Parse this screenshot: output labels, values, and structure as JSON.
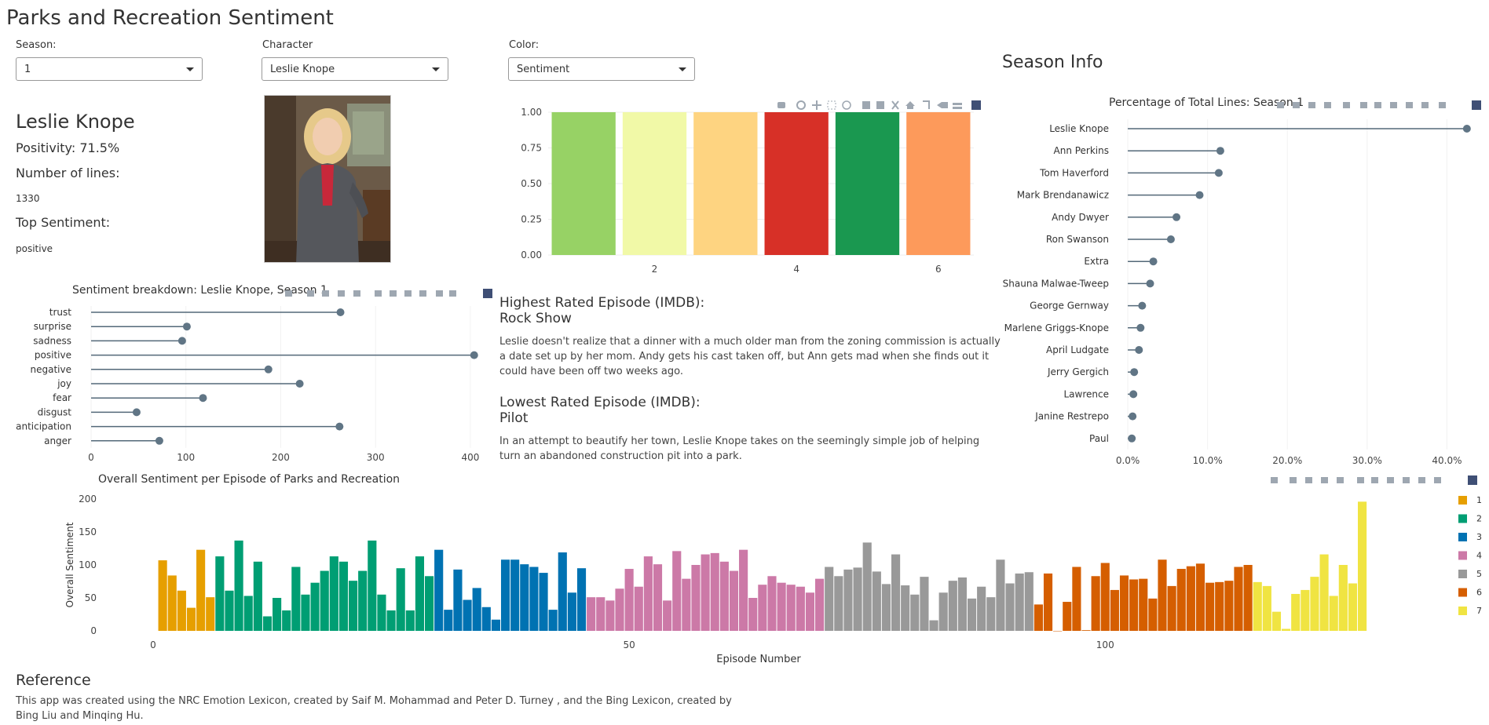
{
  "app": {
    "title": "Parks and Recreation Sentiment"
  },
  "controls": {
    "season": {
      "label": "Season:",
      "value": "1"
    },
    "character": {
      "label": "Character",
      "value": "Leslie Knope"
    },
    "color": {
      "label": "Color:",
      "value": "Sentiment"
    }
  },
  "profile": {
    "name": "Leslie Knope",
    "positivity": "Positivity: 71.5%",
    "lines_label": "Number of lines:",
    "lines_value": "1330",
    "top_label": "Top Sentiment:",
    "top_value": "positive"
  },
  "episodes": {
    "highest_label": "Highest Rated Episode (IMDB):",
    "highest_title": "Rock Show",
    "highest_desc": "Leslie doesn't realize that a dinner with a much older man from the zoning commission is actually a date set up by her mom. Andy gets his cast taken off, but Ann gets mad when she finds out it could have been off two weeks ago.",
    "lowest_label": "Lowest Rated Episode (IMDB):",
    "lowest_title": "Pilot",
    "lowest_desc": "In an attempt to beautify her town, Leslie Knope takes on the seemingly simple job of helping turn an abandoned construction pit into a park."
  },
  "season_info": {
    "title": "Season Info"
  },
  "reference": {
    "title": "Reference",
    "text_line1": "This app was created using the NRC Emotion Lexicon, created by Saif M. Mohammad and Peter D. Turney , and the Bing Lexicon, created by",
    "text_line2": "Bing Liu and Minqing Hu."
  },
  "chart_data": [
    {
      "id": "episode-color-bars",
      "type": "bar",
      "x": [
        1,
        2,
        3,
        4,
        5,
        6
      ],
      "values": [
        1,
        1,
        1,
        1,
        1,
        1
      ],
      "colors": [
        "#97d265",
        "#f1f9a7",
        "#fed481",
        "#d73027",
        "#1a9850",
        "#fd9a5b"
      ],
      "xticks": [
        "2",
        "4",
        "6"
      ],
      "yticks": [
        "0.00",
        "0.25",
        "0.50",
        "0.75",
        "1.00"
      ],
      "ylim": [
        0,
        1
      ]
    },
    {
      "id": "sentiment-breakdown",
      "type": "scatter",
      "title": "Sentiment breakdown: Leslie Knope, Season 1",
      "categories": [
        "trust",
        "surprise",
        "sadness",
        "positive",
        "negative",
        "joy",
        "fear",
        "disgust",
        "anticipation",
        "anger"
      ],
      "values": [
        263,
        101,
        96,
        404,
        187,
        220,
        118,
        48,
        262,
        72
      ],
      "xticks": [
        "0",
        "100",
        "200",
        "300",
        "400"
      ],
      "xlim": [
        0,
        410
      ]
    },
    {
      "id": "percentage-of-lines",
      "type": "scatter",
      "title": "Percentage of Total Lines: Season 1",
      "categories": [
        "Leslie Knope",
        "Ann Perkins",
        "Tom Haverford",
        "Mark Brendanawicz",
        "Andy Dwyer",
        "Ron Swanson",
        "Extra",
        "Shauna Malwae-Tweep",
        "George Gernway",
        "Marlene Griggs-Knope",
        "April Ludgate",
        "Jerry Gergich",
        "Lawrence",
        "Janine Restrepo",
        "Paul"
      ],
      "values": [
        42.5,
        11.6,
        11.4,
        9.0,
        6.1,
        5.4,
        3.2,
        2.8,
        1.8,
        1.6,
        1.4,
        0.8,
        0.7,
        0.6,
        0.5
      ],
      "xticks": [
        "0.0%",
        "10.0%",
        "20.0%",
        "30.0%",
        "40.0%"
      ],
      "xlim": [
        -0.4,
        43.5
      ]
    },
    {
      "id": "overall-sentiment",
      "type": "bar",
      "title": "Overall Sentiment per Episode of Parks and Recreation",
      "xlabel": "Episode Number",
      "ylabel": "Overall Sentiment",
      "ylim": [
        0,
        200
      ],
      "yticks": [
        "0",
        "50",
        "100",
        "150",
        "200"
      ],
      "xticks": [
        "0",
        "50",
        "100"
      ],
      "series": [
        {
          "name": "1",
          "color": "#e69f00",
          "start": 1,
          "values": [
            107,
            84,
            61,
            35,
            123,
            51
          ]
        },
        {
          "name": "2",
          "color": "#009e73",
          "start": 7,
          "values": [
            113,
            61,
            137,
            53,
            105,
            22,
            50,
            31,
            97,
            55,
            73,
            91,
            113,
            105,
            76,
            91,
            137,
            55,
            31,
            95,
            31,
            113,
            83
          ]
        },
        {
          "name": "3",
          "color": "#0072b2",
          "start": 30,
          "values": [
            123,
            32,
            93,
            47,
            65,
            36,
            17,
            108,
            108,
            101,
            97,
            88,
            32,
            119,
            58,
            95
          ]
        },
        {
          "name": "4",
          "color": "#cc79a7",
          "start": 46,
          "values": [
            51,
            51,
            46,
            64,
            94,
            67,
            113,
            101,
            46,
            121,
            79,
            100,
            116,
            118,
            105,
            91,
            123,
            50,
            70,
            83,
            73,
            70,
            67,
            58,
            79
          ]
        },
        {
          "name": "5",
          "color": "#999999",
          "start": 71,
          "values": [
            97,
            83,
            93,
            96,
            134,
            90,
            71,
            116,
            69,
            55,
            82,
            16,
            58,
            76,
            81,
            49,
            67,
            51,
            108,
            72,
            87,
            89
          ]
        },
        {
          "name": "6",
          "color": "#d55e00",
          "start": 93,
          "values": [
            40,
            87,
            0,
            44,
            97,
            1,
            83,
            103,
            62,
            84,
            78,
            79,
            49,
            108,
            68,
            94,
            98,
            102,
            73,
            74,
            76,
            97,
            100
          ]
        },
        {
          "name": "7",
          "color": "#f0e442",
          "start": 116,
          "values": [
            74,
            68,
            29,
            3,
            56,
            62,
            82,
            116,
            53,
            100,
            72,
            196
          ]
        }
      ]
    }
  ]
}
